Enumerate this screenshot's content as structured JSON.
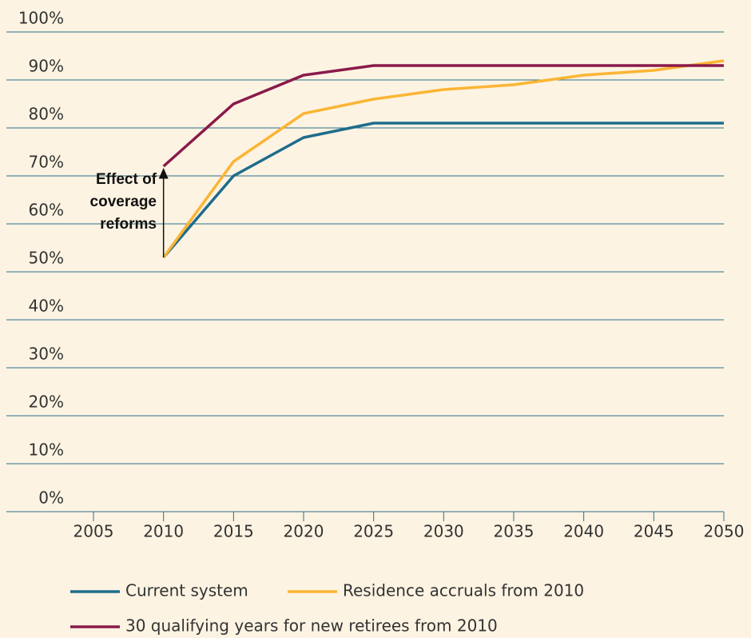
{
  "chart_data": {
    "type": "line",
    "x": [
      2010,
      2015,
      2020,
      2025,
      2030,
      2035,
      2040,
      2045,
      2050
    ],
    "series": [
      {
        "name": "Current system",
        "color": "#1e6c8b",
        "values": [
          53,
          70,
          78,
          81,
          81,
          81,
          81,
          81,
          81
        ]
      },
      {
        "name": "Residence accruals from 2010",
        "color": "#fbb534",
        "values": [
          53,
          73,
          83,
          86,
          88,
          89,
          91,
          92,
          94
        ]
      },
      {
        "name": "30 qualifying years for new retirees from 2010",
        "color": "#8a1a4b",
        "values": [
          72,
          85,
          91,
          93,
          93,
          93,
          93,
          93,
          93
        ]
      }
    ],
    "xlim": [
      2005,
      2050
    ],
    "xticks": [
      2005,
      2010,
      2015,
      2020,
      2025,
      2030,
      2035,
      2040,
      2045,
      2050
    ],
    "ylim": [
      0,
      100
    ],
    "yticks": [
      {
        "value": 0,
        "label": "0%"
      },
      {
        "value": 10,
        "label": "10%"
      },
      {
        "value": 20,
        "label": "20%"
      },
      {
        "value": 30,
        "label": "30%"
      },
      {
        "value": 40,
        "label": "40%"
      },
      {
        "value": 50,
        "label": "50%"
      },
      {
        "value": 60,
        "label": "60%"
      },
      {
        "value": 70,
        "label": "70%"
      },
      {
        "value": 80,
        "label": "80%"
      },
      {
        "value": 90,
        "label": "90%"
      },
      {
        "value": 100,
        "label": "100%"
      }
    ],
    "grid": true,
    "annotation": {
      "lines": [
        "Effect of",
        "coverage",
        "reforms"
      ],
      "x": 2010,
      "from": 53,
      "to": 72
    },
    "legend": "bottom"
  }
}
